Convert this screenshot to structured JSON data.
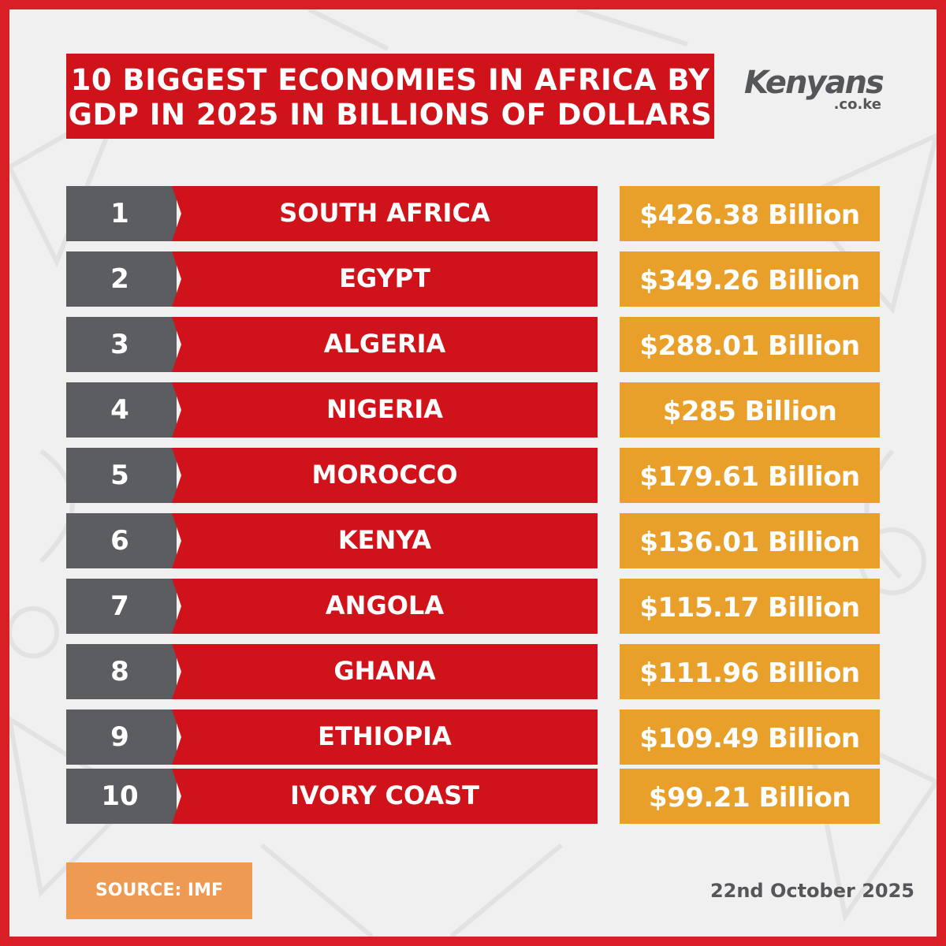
{
  "title": {
    "line1": "10 BIGGEST ECONOMIES IN AFRICA BY",
    "line2": "GDP IN 2025 IN BILLIONS OF DOLLARS"
  },
  "logo": {
    "main": "Kenyans",
    "sub": ".co.ke"
  },
  "chart_data": {
    "type": "table",
    "title": "10 BIGGEST ECONOMIES IN AFRICA BY GDP IN 2025 IN BILLIONS OF DOLLARS",
    "unit": "Billions of dollars",
    "rows": [
      {
        "rank": "1",
        "country": "SOUTH AFRICA",
        "value": 426.38,
        "label": "$426.38 Billion"
      },
      {
        "rank": "2",
        "country": "EGYPT",
        "value": 349.26,
        "label": "$349.26 Billion"
      },
      {
        "rank": "3",
        "country": "ALGERIA",
        "value": 288.01,
        "label": "$288.01 Billion"
      },
      {
        "rank": "4",
        "country": "NIGERIA",
        "value": 285,
        "label": "$285 Billion"
      },
      {
        "rank": "5",
        "country": "MOROCCO",
        "value": 179.61,
        "label": "$179.61 Billion"
      },
      {
        "rank": "6",
        "country": "KENYA",
        "value": 136.01,
        "label": "$136.01 Billion"
      },
      {
        "rank": "7",
        "country": "ANGOLA",
        "value": 115.17,
        "label": "$115.17 Billion"
      },
      {
        "rank": "8",
        "country": "GHANA",
        "value": 111.96,
        "label": "$111.96 Billion"
      },
      {
        "rank": "9",
        "country": "ETHIOPIA",
        "value": 109.49,
        "label": "$109.49 Billion"
      },
      {
        "rank": "10",
        "country": "IVORY COAST",
        "value": 99.21,
        "label": "$99.21 Billion"
      }
    ]
  },
  "source": "SOURCE: IMF",
  "date": "22nd October 2025",
  "colors": {
    "frame": "#d81f26",
    "background": "#f0f0f0",
    "title_bg": "#d0121a",
    "rank_bg": "#5c5d61",
    "country_bg": "#d0121a",
    "value_bg": "#e8a02a",
    "source_bg": "#ef9a52",
    "text_dark": "#55565a"
  }
}
